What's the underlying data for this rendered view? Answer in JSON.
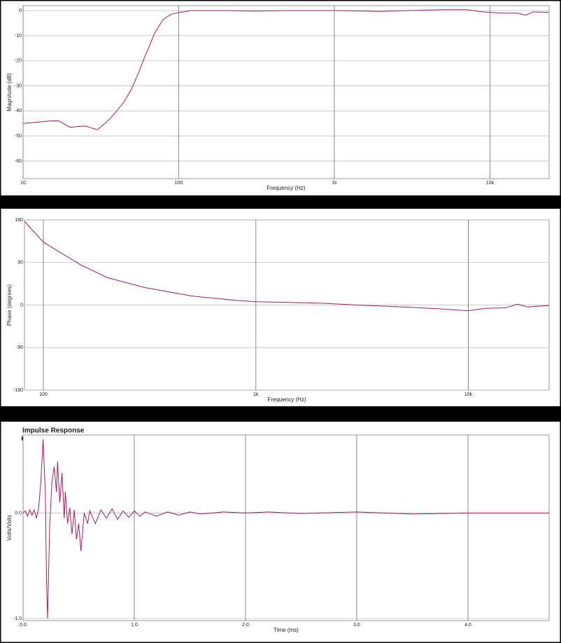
{
  "chart_data": [
    {
      "type": "line",
      "x_label": "Frequency (Hz)",
      "y_label": "Magnitude (dB)",
      "xscale": "log",
      "grid": true,
      "color": "#9c1f5e",
      "x": [
        10,
        15,
        17,
        20,
        25,
        30,
        35,
        40,
        45,
        50,
        55,
        60,
        65,
        70,
        75,
        80,
        90,
        100,
        120,
        200,
        300,
        500,
        1000,
        2000,
        3000,
        5000,
        7000,
        9000,
        12000,
        15000,
        17000,
        19000,
        24000
      ],
      "values": [
        -45,
        -44,
        -44,
        -46.5,
        -46,
        -47.5,
        -44,
        -40,
        -36,
        -31,
        -25,
        -19,
        -14,
        -9,
        -6,
        -3.3,
        -1.4,
        -0.8,
        0,
        0,
        -0.2,
        0,
        0,
        -0.3,
        0,
        0.4,
        0.4,
        -0.5,
        -1,
        -1,
        -1.8,
        -0.5,
        -0.7
      ],
      "xlim": [
        10,
        24000
      ],
      "ylim": [
        -67,
        2
      ],
      "xticks": [
        10,
        100,
        {
          "value": 1000,
          "label": "1k"
        },
        {
          "value": 10000,
          "label": "10k"
        }
      ],
      "yticks": [
        0,
        -10,
        -20,
        -30,
        -40,
        -50,
        -60
      ]
    },
    {
      "type": "line",
      "x_label": "Frequency (Hz)",
      "y_label": "Phase (degrees)",
      "xscale": "log",
      "grid": true,
      "color": "#9c1f5e",
      "x": [
        81.5,
        100,
        150,
        200,
        300,
        500,
        800,
        1000,
        2000,
        3000,
        5000,
        8000,
        10000,
        12000,
        15000,
        17000,
        19000,
        24000
      ],
      "values": [
        177,
        133,
        85,
        58,
        37,
        19,
        10,
        7,
        4,
        0,
        -4,
        -9,
        -12,
        -7,
        -6,
        2,
        -4,
        -1
      ],
      "xlim": [
        81.5,
        24000
      ],
      "ylim": [
        -180,
        180
      ],
      "xticks": [
        100,
        {
          "value": 1000,
          "label": "1k"
        },
        {
          "value": 10000,
          "label": "10k"
        }
      ],
      "yticks": [
        180,
        90,
        0,
        -90,
        -180
      ]
    },
    {
      "type": "line",
      "title": "Impulse Response",
      "x_label": "Time (ms)",
      "y_label": "Volts/Volts",
      "xscale": "linear",
      "grid": true,
      "color": "#9c1f5e",
      "x": [
        0,
        0.02,
        0.04,
        0.06,
        0.08,
        0.1,
        0.12,
        0.14,
        0.16,
        0.18,
        0.2,
        0.21,
        0.22,
        0.24,
        0.26,
        0.28,
        0.3,
        0.31,
        0.33,
        0.35,
        0.37,
        0.38,
        0.4,
        0.42,
        0.44,
        0.46,
        0.48,
        0.5,
        0.52,
        0.55,
        0.58,
        0.6,
        0.65,
        0.7,
        0.75,
        0.8,
        0.85,
        0.9,
        0.95,
        1.0,
        1.05,
        1.1,
        1.2,
        1.3,
        1.4,
        1.5,
        1.6,
        1.8,
        2.0,
        2.2,
        2.5,
        3.0,
        3.5,
        4.0,
        4.73
      ],
      "values": [
        0,
        0.02,
        -0.03,
        0.03,
        -0.02,
        0.03,
        -0.05,
        0.05,
        0.3,
        0.7,
        0.2,
        -0.6,
        -1.0,
        -0.1,
        0.3,
        0.44,
        0.2,
        0.49,
        0.1,
        0.38,
        -0.05,
        0.2,
        -0.1,
        0.05,
        -0.2,
        0.03,
        -0.25,
        -0.1,
        -0.36,
        0,
        -0.1,
        0.02,
        -0.1,
        0.03,
        -0.05,
        0.04,
        -0.06,
        0.02,
        -0.04,
        0.02,
        -0.03,
        0.01,
        -0.03,
        0.01,
        -0.02,
        0.01,
        -0.01,
        0.01,
        0,
        0.01,
        -0.005,
        0.01,
        -0.01,
        0,
        0
      ],
      "xlim": [
        0,
        4.73
      ],
      "ylim": [
        -1.02,
        0.74
      ],
      "xticks": [
        {
          "value": 0,
          "label": "0.0"
        },
        {
          "value": 1,
          "label": "1.0"
        },
        {
          "value": 2,
          "label": "2.0"
        },
        {
          "value": 3,
          "label": "3.0"
        },
        {
          "value": 4,
          "label": "4.0"
        }
      ],
      "yticks": [
        {
          "value": 0,
          "label": "0.0"
        },
        {
          "value": -1,
          "label": "-1.0"
        }
      ]
    }
  ]
}
